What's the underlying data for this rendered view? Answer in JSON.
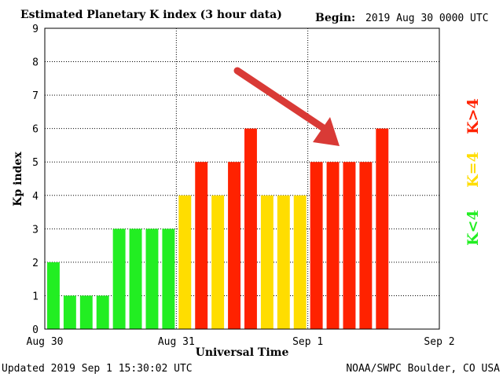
{
  "header": {
    "title": "Estimated Planetary K index (3 hour data)",
    "begin_label": "Begin:",
    "begin_value": "2019 Aug 30 0000 UTC"
  },
  "footer": {
    "updated": "Updated 2019 Sep  1 15:30:02 UTC",
    "source": "NOAA/SWPC Boulder, CO USA"
  },
  "legend": {
    "low": "K<4",
    "mid": "K=4",
    "high": "K>4"
  },
  "colors": {
    "low": "#22ee22",
    "mid": "#ffdd00",
    "high": "#ff2200",
    "arrow": "#d93a36"
  },
  "chart_data": {
    "type": "bar",
    "ylabel": "Kp index",
    "xlabel": "Universal Time",
    "ylim": [
      0,
      9
    ],
    "yticks": [
      "0",
      "1",
      "2",
      "3",
      "4",
      "5",
      "6",
      "7",
      "8",
      "9"
    ],
    "xticks": [
      "Aug 30",
      "Aug 31",
      "Sep 1",
      "Sep 2"
    ],
    "slots_total": 24,
    "values": [
      2,
      1,
      1,
      1,
      3,
      3,
      3,
      3,
      4,
      5,
      4,
      5,
      6,
      4,
      4,
      4,
      5,
      5,
      5,
      5,
      6
    ],
    "grid": true,
    "annotation": "arrow pointing to Sep 1 storm bars"
  }
}
